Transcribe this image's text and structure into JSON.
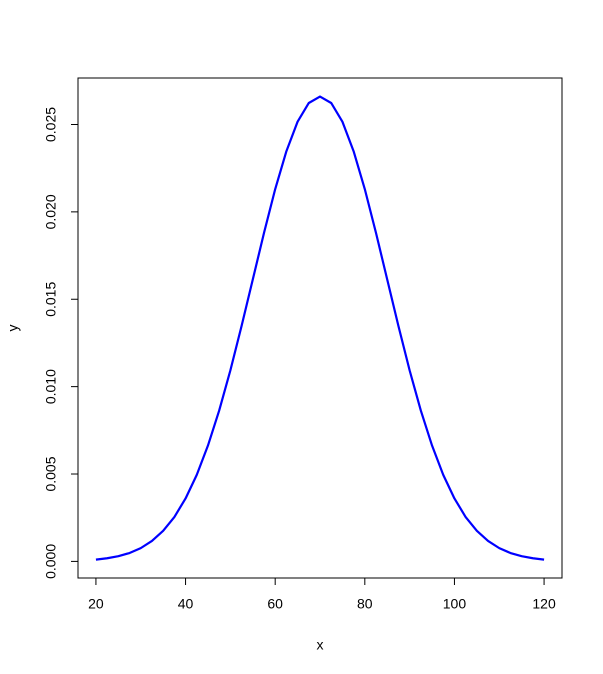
{
  "chart_data": {
    "type": "line",
    "x_label": "x",
    "y_label": "y",
    "x": [
      20,
      22.5,
      25,
      27.5,
      30,
      32.5,
      35,
      37.5,
      40,
      42.5,
      45,
      47.5,
      50,
      52.5,
      55,
      57.5,
      60,
      62.5,
      65,
      67.5,
      70,
      72.5,
      75,
      77.5,
      80,
      82.5,
      85,
      87.5,
      90,
      92.5,
      95,
      97.5,
      100,
      102.5,
      105,
      107.5,
      110,
      112.5,
      115,
      117.5,
      120
    ],
    "values": [
      0.0001,
      0.00018,
      0.0003,
      0.00048,
      0.00076,
      0.00117,
      0.00175,
      0.00254,
      0.0036,
      0.00495,
      0.00663,
      0.00863,
      0.01093,
      0.01347,
      0.01613,
      0.01879,
      0.0213,
      0.02347,
      0.02516,
      0.02623,
      0.0266,
      0.02623,
      0.02516,
      0.02347,
      0.0213,
      0.01879,
      0.01613,
      0.01347,
      0.01093,
      0.00863,
      0.00663,
      0.00495,
      0.0036,
      0.00254,
      0.00175,
      0.00117,
      0.00076,
      0.00048,
      0.0003,
      0.00018,
      0.0001
    ],
    "color": "#0000ff",
    "xlim": [
      16,
      124
    ],
    "xticks": [
      20,
      40,
      60,
      80,
      100,
      120
    ],
    "ylim": [
      -0.00095,
      0.02766
    ],
    "yticks": [
      {
        "value": 0,
        "label": "0.000"
      },
      {
        "value": 0.005,
        "label": "0.005"
      },
      {
        "value": 0.01,
        "label": "0.010"
      },
      {
        "value": 0.015,
        "label": "0.015"
      },
      {
        "value": 0.02,
        "label": "0.020"
      },
      {
        "value": 0.025,
        "label": "0.025"
      }
    ]
  }
}
